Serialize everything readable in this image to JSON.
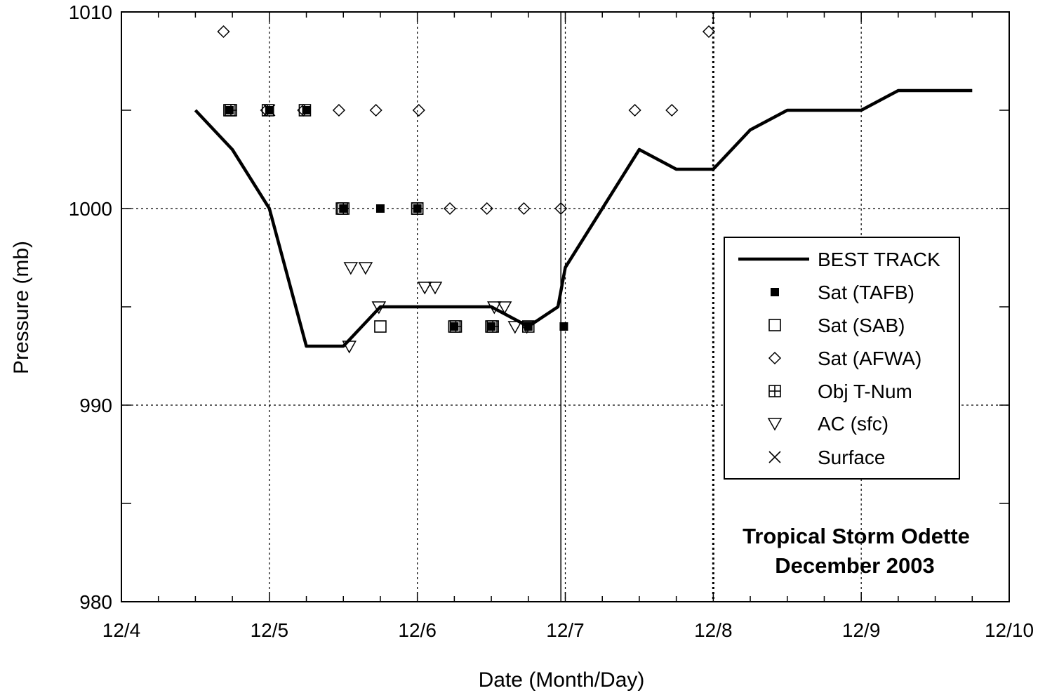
{
  "chart_data": {
    "type": "scatter",
    "xlabel": "Date (Month/Day)",
    "ylabel": "Pressure (mb)",
    "xlim": [
      4,
      10
    ],
    "ylim": [
      980,
      1010
    ],
    "x_ticks": [
      4,
      5,
      6,
      7,
      8,
      9,
      10
    ],
    "x_tick_labels": [
      "12/4",
      "12/5",
      "12/6",
      "12/7",
      "12/8",
      "12/9",
      "12/10"
    ],
    "y_ticks": [
      980,
      990,
      1000,
      1010
    ],
    "y_tick_labels": [
      "980",
      "990",
      "1000",
      "1010"
    ],
    "y_minor_ticks": [
      985,
      995,
      1005
    ],
    "grid": true,
    "legend_position": "right",
    "annotation": [
      "Tropical Storm Odette",
      "December 2003"
    ],
    "series": [
      {
        "name": "BEST TRACK",
        "marker": "line",
        "points": [
          [
            4.5,
            1005
          ],
          [
            4.75,
            1003
          ],
          [
            5.0,
            1000
          ],
          [
            5.25,
            993
          ],
          [
            5.5,
            993
          ],
          [
            5.75,
            995
          ],
          [
            6.0,
            995
          ],
          [
            6.25,
            995
          ],
          [
            6.5,
            995
          ],
          [
            6.75,
            994
          ],
          [
            6.95,
            995
          ],
          [
            7.0,
            997
          ],
          [
            7.25,
            1000
          ],
          [
            7.5,
            1003
          ],
          [
            7.75,
            1002
          ],
          [
            8.0,
            1002
          ],
          [
            8.25,
            1004
          ],
          [
            8.5,
            1005
          ],
          [
            8.75,
            1005
          ],
          [
            9.0,
            1005
          ],
          [
            9.25,
            1006
          ],
          [
            9.5,
            1006
          ],
          [
            9.75,
            1006
          ]
        ]
      },
      {
        "name": "Sat (TAFB)",
        "marker": "filled-square",
        "points": [
          [
            4.73,
            1005
          ],
          [
            5.0,
            1005
          ],
          [
            5.25,
            1005
          ],
          [
            5.5,
            1000
          ],
          [
            5.75,
            1000
          ],
          [
            6.0,
            1000
          ],
          [
            6.25,
            994
          ],
          [
            6.5,
            994
          ],
          [
            6.75,
            994
          ],
          [
            6.99,
            994
          ]
        ]
      },
      {
        "name": "Sat (SAB)",
        "marker": "open-square",
        "points": [
          [
            4.73,
            1005
          ],
          [
            4.99,
            1005
          ],
          [
            5.24,
            1005
          ],
          [
            5.49,
            1000
          ],
          [
            6.0,
            1000
          ],
          [
            5.75,
            994
          ],
          [
            6.25,
            994
          ],
          [
            6.5,
            994
          ],
          [
            6.75,
            994
          ]
        ]
      },
      {
        "name": "Sat (AFWA)",
        "marker": "diamond",
        "points": [
          [
            4.69,
            1009
          ],
          [
            4.98,
            1005
          ],
          [
            5.23,
            1005
          ],
          [
            5.47,
            1005
          ],
          [
            5.72,
            1005
          ],
          [
            6.01,
            1005
          ],
          [
            6.22,
            1000
          ],
          [
            6.47,
            1000
          ],
          [
            6.72,
            1000
          ],
          [
            6.97,
            1000
          ],
          [
            7.47,
            1005
          ],
          [
            7.72,
            1005
          ],
          [
            7.97,
            1009
          ]
        ]
      },
      {
        "name": "Obj T-Num",
        "marker": "boxplus",
        "points": [
          [
            4.74,
            1005
          ],
          [
            5.5,
            1000
          ],
          [
            6.0,
            1000
          ],
          [
            6.26,
            994
          ],
          [
            6.51,
            994
          ]
        ]
      },
      {
        "name": "AC (sfc)",
        "marker": "triangle-down",
        "points": [
          [
            5.55,
            997
          ],
          [
            5.65,
            997
          ],
          [
            6.05,
            996
          ],
          [
            6.12,
            996
          ],
          [
            5.74,
            995
          ],
          [
            6.52,
            995
          ],
          [
            6.59,
            995
          ],
          [
            6.66,
            994
          ],
          [
            6.74,
            994
          ],
          [
            5.54,
            993
          ]
        ]
      },
      {
        "name": "Surface",
        "marker": "x",
        "points": [
          [
            5.0,
            1005
          ]
        ]
      }
    ]
  }
}
